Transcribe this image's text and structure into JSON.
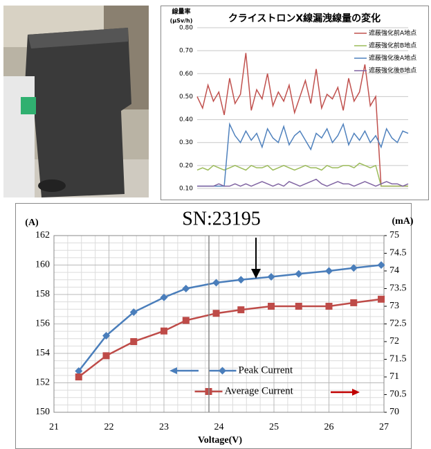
{
  "chart_data": [
    {
      "type": "line",
      "title": "クライストロンX線漏洩線量の変化",
      "y_label": "線量率",
      "y_unit": "(μSv/h)",
      "categories": [
        null,
        null,
        null,
        null,
        null,
        null,
        null,
        null,
        null,
        null,
        null,
        null,
        null,
        null,
        null,
        null,
        null,
        null,
        null,
        null,
        null,
        null,
        null,
        null,
        null,
        null,
        null,
        null,
        null,
        null,
        null,
        null,
        null,
        null,
        null,
        null,
        null,
        null,
        null,
        null
      ],
      "ylim": [
        0.1,
        0.8
      ],
      "yticks": [
        {
          "value": 0.1,
          "label": "0.10"
        },
        {
          "value": 0.2,
          "label": "0.20"
        },
        {
          "value": 0.3,
          "label": "0.30"
        },
        {
          "value": 0.4,
          "label": "0.40"
        },
        {
          "value": 0.5,
          "label": "0.50"
        },
        {
          "value": 0.6,
          "label": "0.60"
        },
        {
          "value": 0.7,
          "label": "0.70"
        },
        {
          "value": 0.8,
          "label": "0.80"
        }
      ],
      "grid": true,
      "legend": "upper right",
      "series": [
        {
          "name": "遮蔽強化前A地点",
          "color": "#c0504d",
          "values": [
            0.5,
            0.45,
            0.55,
            0.48,
            0.52,
            0.42,
            0.58,
            0.47,
            0.51,
            0.69,
            0.44,
            0.53,
            0.49,
            0.6,
            0.46,
            0.52,
            0.48,
            0.55,
            0.43,
            0.5,
            0.57,
            0.47,
            0.62,
            0.45,
            0.51,
            0.49,
            0.54,
            0.44,
            0.58,
            0.48,
            0.52,
            0.64,
            0.46,
            0.5,
            0.11,
            0.11,
            0.11,
            0.11,
            0.11,
            0.11
          ]
        },
        {
          "name": "遮蔽強化前B地点",
          "color": "#9bbb59",
          "values": [
            0.18,
            0.19,
            0.18,
            0.2,
            0.19,
            0.18,
            0.19,
            0.2,
            0.19,
            0.18,
            0.2,
            0.19,
            0.19,
            0.2,
            0.18,
            0.19,
            0.2,
            0.19,
            0.18,
            0.19,
            0.2,
            0.19,
            0.19,
            0.18,
            0.2,
            0.19,
            0.19,
            0.2,
            0.2,
            0.19,
            0.21,
            0.2,
            0.19,
            0.2,
            0.11,
            0.11,
            0.11,
            0.11,
            0.11,
            0.11
          ]
        },
        {
          "name": "遮蔽強化後A地点",
          "color": "#4f81bd",
          "values": [
            0.11,
            0.11,
            0.11,
            0.11,
            0.11,
            0.11,
            0.38,
            0.33,
            0.3,
            0.35,
            0.31,
            0.34,
            0.28,
            0.36,
            0.32,
            0.3,
            0.37,
            0.29,
            0.33,
            0.35,
            0.31,
            0.27,
            0.34,
            0.32,
            0.36,
            0.3,
            0.33,
            0.38,
            0.29,
            0.34,
            0.31,
            0.35,
            0.3,
            0.33,
            0.28,
            0.36,
            0.32,
            0.3,
            0.35,
            0.34
          ]
        },
        {
          "name": "遮蔽強化後B地点",
          "color": "#8064a2",
          "values": [
            0.11,
            0.11,
            0.11,
            0.11,
            0.12,
            0.11,
            0.11,
            0.12,
            0.11,
            0.12,
            0.11,
            0.12,
            0.13,
            0.12,
            0.11,
            0.12,
            0.11,
            0.13,
            0.12,
            0.11,
            0.12,
            0.13,
            0.14,
            0.12,
            0.11,
            0.12,
            0.13,
            0.12,
            0.12,
            0.11,
            0.12,
            0.13,
            0.12,
            0.11,
            0.12,
            0.13,
            0.12,
            0.12,
            0.11,
            0.12
          ]
        }
      ]
    },
    {
      "type": "line",
      "title": "SN:23195",
      "y_unit": "(A)",
      "y2_unit": "(mA)",
      "x_label": "Voltage(V)",
      "x": [
        21.45,
        21.95,
        22.45,
        23.0,
        23.4,
        23.95,
        24.4,
        24.95,
        25.45,
        26.0,
        26.45,
        26.95
      ],
      "xlim": [
        21,
        27
      ],
      "xticks": [
        21,
        22,
        23,
        24,
        25,
        26,
        27
      ],
      "ylim": [
        150,
        162
      ],
      "yticks": [
        150,
        152,
        154,
        156,
        158,
        160,
        162
      ],
      "y2lim": [
        70,
        75
      ],
      "y2ticks": [
        70,
        70.5,
        71,
        71.5,
        72,
        72.5,
        73,
        73.5,
        74,
        74.5,
        75
      ],
      "grid": true,
      "minor_grid": true,
      "legend": "lower center",
      "series": [
        {
          "name": "Peak Current",
          "color": "#4a7ebb",
          "marker": "diamond",
          "values": [
            152.8,
            155.2,
            156.8,
            157.8,
            158.4,
            158.8,
            159.0,
            159.2,
            159.4,
            159.6,
            159.8,
            160.0
          ]
        },
        {
          "name": "Average Current",
          "color": "#be4b48",
          "marker": "square",
          "axis": "y2",
          "values": [
            71.0,
            71.6,
            72.0,
            72.3,
            72.6,
            72.8,
            72.9,
            73.0,
            73.0,
            73.0,
            73.1,
            73.2
          ]
        }
      ]
    }
  ]
}
